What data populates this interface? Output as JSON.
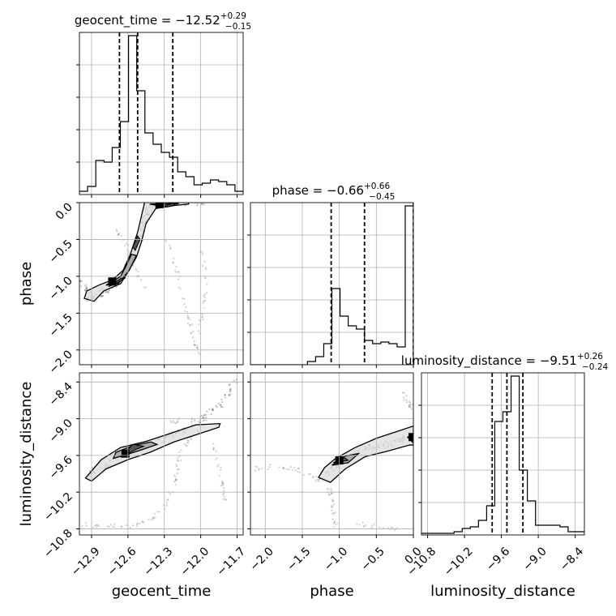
{
  "chart_data": {
    "type": "corner",
    "grid": true,
    "parameters": [
      {
        "name": "geocent_time",
        "title_prefix": "geocent_time = ",
        "median_text": "−12.52",
        "upper_err_text": "+0.29",
        "lower_err_text": "−0.15",
        "range": [
          -13.0,
          -11.65
        ],
        "quantiles": [
          -12.67,
          -12.52,
          -12.23
        ],
        "ticks": [
          -12.9,
          -12.6,
          -12.3,
          -12.0,
          -11.7
        ],
        "tick_labels": [
          "−12.9",
          "−12.6",
          "−12.3",
          "−12.0",
          "−11.7"
        ],
        "histogram": {
          "edges_start": -13.0,
          "bin_width": 0.0675,
          "counts": [
            0.02,
            0.05,
            0.21,
            0.2,
            0.29,
            0.45,
            0.98,
            0.64,
            0.38,
            0.31,
            0.26,
            0.23,
            0.14,
            0.11,
            0.06,
            0.07,
            0.09,
            0.08,
            0.06,
            0.02
          ]
        }
      },
      {
        "name": "phase",
        "title_prefix": "phase = ",
        "median_text": "−0.66",
        "upper_err_text": "+0.66",
        "lower_err_text": "−0.45",
        "range": [
          -2.2,
          0.0
        ],
        "quantiles": [
          -1.11,
          -0.66,
          0.0
        ],
        "ticks": [
          -2.0,
          -1.5,
          -1.0,
          -0.5,
          0.0
        ],
        "tick_labels": [
          "−2.0",
          "−1.5",
          "−1.0",
          "−0.5",
          "0.0"
        ],
        "histogram": {
          "edges_start": -2.2,
          "bin_width": 0.11,
          "counts": [
            0.0,
            0.0,
            0.0,
            0.0,
            0.0,
            0.0,
            0.0,
            0.02,
            0.05,
            0.13,
            0.47,
            0.3,
            0.24,
            0.22,
            0.15,
            0.13,
            0.14,
            0.13,
            0.11,
            0.98
          ]
        }
      },
      {
        "name": "luminosity_distance",
        "title_prefix": "luminosity_distance = ",
        "median_text": "−9.51",
        "upper_err_text": "+0.26",
        "lower_err_text": "−0.24",
        "range": [
          -10.9,
          -8.25
        ],
        "quantiles": [
          -9.75,
          -9.51,
          -9.25
        ],
        "ticks": [
          -10.8,
          -10.2,
          -9.6,
          -9.0,
          -8.4
        ],
        "tick_labels": [
          "−10.8",
          "−10.2",
          "−9.6",
          "−9.0",
          "−8.4"
        ],
        "histogram": {
          "edges_start": -10.9,
          "bin_width": 0.1325,
          "counts": [
            0.01,
            0.01,
            0.01,
            0.01,
            0.02,
            0.04,
            0.05,
            0.09,
            0.18,
            0.7,
            0.76,
            0.98,
            0.4,
            0.21,
            0.06,
            0.06,
            0.06,
            0.05,
            0.02,
            0.02
          ]
        }
      }
    ],
    "axis_labels": [
      "geocent_time",
      "phase",
      "luminosity_distance"
    ],
    "scatter_pairs": [
      {
        "x_param": "geocent_time",
        "y_param": "phase",
        "ridge": [
          [
            -12.93,
            -1.31
          ],
          [
            -12.85,
            -1.26
          ],
          [
            -12.76,
            -1.17
          ],
          [
            -12.7,
            -1.07
          ],
          [
            -12.63,
            -0.98
          ],
          [
            -12.58,
            -0.8
          ],
          [
            -12.55,
            -0.68
          ],
          [
            -12.5,
            -0.52
          ],
          [
            -12.48,
            -0.33
          ],
          [
            -12.44,
            -0.18
          ],
          [
            -12.42,
            -0.05
          ],
          [
            -12.3,
            -0.01
          ],
          [
            -12.15,
            0.0
          ],
          [
            -11.95,
            0.0
          ]
        ],
        "faint_trails": [
          [
            [
              -12.7,
              -0.35
            ],
            [
              -12.62,
              -0.55
            ],
            [
              -12.55,
              -0.9
            ],
            [
              -12.45,
              -1.2
            ]
          ],
          [
            [
              -12.28,
              -0.5
            ],
            [
              -12.2,
              -0.9
            ],
            [
              -12.15,
              -1.3
            ],
            [
              -12.1,
              -1.6
            ],
            [
              -12.05,
              -1.9
            ],
            [
              -12.0,
              -2.05
            ]
          ],
          [
            [
              -12.0,
              -0.6
            ],
            [
              -11.95,
              -1.1
            ],
            [
              -11.98,
              -1.5
            ],
            [
              -12.02,
              -1.8
            ]
          ],
          [
            [
              -13.0,
              -1.05
            ],
            [
              -12.95,
              -1.15
            ],
            [
              -12.9,
              -1.22
            ]
          ]
        ],
        "contours": [
          [
            [
              -12.96,
              -1.3
            ],
            [
              -12.88,
              -1.34
            ],
            [
              -12.8,
              -1.2
            ],
            [
              -12.66,
              -1.1
            ],
            [
              -12.6,
              -0.94
            ],
            [
              -12.53,
              -0.74
            ],
            [
              -12.49,
              -0.54
            ],
            [
              -12.45,
              -0.28
            ],
            [
              -12.37,
              -0.08
            ],
            [
              -12.22,
              -0.04
            ],
            [
              -12.1,
              -0.02
            ],
            [
              -12.1,
              0.02
            ],
            [
              -12.46,
              0.02
            ],
            [
              -12.52,
              -0.4
            ],
            [
              -12.58,
              -0.7
            ],
            [
              -12.64,
              -0.92
            ],
            [
              -12.73,
              -1.05
            ],
            [
              -12.84,
              -1.12
            ],
            [
              -12.94,
              -1.2
            ],
            [
              -12.96,
              -1.3
            ]
          ],
          [
            [
              -12.78,
              -1.12
            ],
            [
              -12.66,
              -1.0
            ],
            [
              -12.61,
              -0.84
            ],
            [
              -12.57,
              -0.7
            ],
            [
              -12.53,
              -0.72
            ],
            [
              -12.59,
              -0.92
            ],
            [
              -12.68,
              -1.1
            ],
            [
              -12.78,
              -1.12
            ]
          ],
          [
            [
              -12.42,
              -0.02
            ],
            [
              -12.28,
              -0.06
            ],
            [
              -12.18,
              -0.01
            ],
            [
              -12.42,
              -0.02
            ]
          ]
        ],
        "filled": [
          [
            [
              -12.76,
              -1.14
            ],
            [
              -12.66,
              -1.03
            ],
            [
              -12.62,
              -1.02
            ],
            [
              -12.7,
              -1.1
            ],
            [
              -12.76,
              -1.14
            ]
          ],
          [
            [
              -12.56,
              -0.6
            ],
            [
              -12.52,
              -0.45
            ],
            [
              -12.5,
              -0.5
            ],
            [
              -12.54,
              -0.65
            ],
            [
              -12.56,
              -0.6
            ]
          ],
          [
            [
              -12.4,
              -0.02
            ],
            [
              -12.3,
              -0.05
            ],
            [
              -12.24,
              -0.02
            ],
            [
              -12.4,
              -0.02
            ]
          ]
        ],
        "peaks": [
          [
            -12.73,
            -1.07
          ],
          [
            -12.34,
            -0.02
          ]
        ]
      },
      {
        "x_param": "geocent_time",
        "y_param": "luminosity_distance",
        "ridge": [
          [
            -12.95,
            -9.95
          ],
          [
            -12.86,
            -9.83
          ],
          [
            -12.75,
            -9.7
          ],
          [
            -12.62,
            -9.56
          ],
          [
            -12.5,
            -9.47
          ],
          [
            -12.35,
            -9.35
          ],
          [
            -12.2,
            -9.24
          ],
          [
            -12.05,
            -9.08
          ],
          [
            -11.9,
            -8.88
          ],
          [
            -11.8,
            -8.68
          ],
          [
            -11.72,
            -8.35
          ]
        ],
        "faint_trails": [
          [
            [
              -12.98,
              -10.72
            ],
            [
              -12.8,
              -10.75
            ],
            [
              -12.6,
              -10.77
            ],
            [
              -12.45,
              -10.7
            ],
            [
              -12.3,
              -10.45
            ],
            [
              -12.22,
              -10.1
            ],
            [
              -12.2,
              -9.85
            ],
            [
              -12.17,
              -9.6
            ],
            [
              -12.1,
              -9.35
            ],
            [
              -12.0,
              -9.18
            ]
          ],
          [
            [
              -12.25,
              -9.05
            ],
            [
              -12.1,
              -9.02
            ],
            [
              -11.95,
              -9.0
            ]
          ],
          [
            [
              -11.9,
              -9.4
            ],
            [
              -11.85,
              -9.8
            ],
            [
              -11.82,
              -10.1
            ],
            [
              -11.8,
              -10.4
            ]
          ]
        ],
        "contours": [
          [
            [
              -12.95,
              -9.97
            ],
            [
              -12.9,
              -10.02
            ],
            [
              -12.78,
              -9.82
            ],
            [
              -12.6,
              -9.67
            ],
            [
              -12.42,
              -9.55
            ],
            [
              -12.22,
              -9.38
            ],
            [
              -12.02,
              -9.25
            ],
            [
              -11.85,
              -9.14
            ],
            [
              -11.84,
              -9.08
            ],
            [
              -12.04,
              -9.1
            ],
            [
              -12.25,
              -9.24
            ],
            [
              -12.45,
              -9.37
            ],
            [
              -12.66,
              -9.47
            ],
            [
              -12.82,
              -9.67
            ],
            [
              -12.95,
              -9.97
            ]
          ],
          [
            [
              -12.72,
              -9.65
            ],
            [
              -12.52,
              -9.53
            ],
            [
              -12.36,
              -9.42
            ],
            [
              -12.41,
              -9.38
            ],
            [
              -12.56,
              -9.44
            ],
            [
              -12.7,
              -9.55
            ],
            [
              -12.72,
              -9.65
            ]
          ]
        ],
        "filled": [
          [
            [
              -12.66,
              -9.63
            ],
            [
              -12.53,
              -9.5
            ],
            [
              -12.47,
              -9.45
            ],
            [
              -12.56,
              -9.42
            ],
            [
              -12.66,
              -9.63
            ]
          ]
        ],
        "peaks": [
          [
            -12.62,
            -9.57
          ]
        ]
      },
      {
        "x_param": "phase",
        "y_param": "luminosity_distance",
        "ridge": [
          [
            -1.25,
            -9.98
          ],
          [
            -1.1,
            -9.8
          ],
          [
            -0.95,
            -9.68
          ],
          [
            -0.8,
            -9.57
          ],
          [
            -0.6,
            -9.46
          ],
          [
            -0.4,
            -9.43
          ],
          [
            -0.2,
            -9.37
          ],
          [
            -0.05,
            -9.28
          ],
          [
            0.0,
            -9.22
          ]
        ],
        "faint_trails": [
          [
            [
              -2.15,
              -9.82
            ],
            [
              -1.9,
              -9.78
            ],
            [
              -1.6,
              -9.82
            ],
            [
              -1.35,
              -9.95
            ],
            [
              -1.2,
              -10.05
            ]
          ],
          [
            [
              -1.15,
              -10.1
            ],
            [
              -1.1,
              -10.3
            ],
            [
              -1.08,
              -10.55
            ],
            [
              -1.05,
              -10.75
            ]
          ],
          [
            [
              -0.8,
              -10.72
            ],
            [
              -0.5,
              -10.75
            ],
            [
              -0.2,
              -10.8
            ]
          ],
          [
            [
              -0.15,
              -8.6
            ],
            [
              -0.05,
              -8.75
            ],
            [
              0.0,
              -8.85
            ]
          ]
        ],
        "contours": [
          [
            [
              -1.28,
              -9.96
            ],
            [
              -1.12,
              -10.04
            ],
            [
              -0.92,
              -9.82
            ],
            [
              -0.65,
              -9.62
            ],
            [
              -0.35,
              -9.53
            ],
            [
              -0.05,
              -9.43
            ],
            [
              0.0,
              -9.43
            ],
            [
              0.0,
              -9.12
            ],
            [
              -0.2,
              -9.2
            ],
            [
              -0.5,
              -9.32
            ],
            [
              -0.8,
              -9.48
            ],
            [
              -1.05,
              -9.65
            ],
            [
              -1.2,
              -9.8
            ],
            [
              -1.28,
              -9.96
            ]
          ],
          [
            [
              -1.1,
              -9.76
            ],
            [
              -0.92,
              -9.61
            ],
            [
              -0.74,
              -9.57
            ],
            [
              -0.88,
              -9.72
            ],
            [
              -1.1,
              -9.76
            ]
          ]
        ],
        "filled": [
          [
            [
              -1.08,
              -9.72
            ],
            [
              -0.95,
              -9.62
            ],
            [
              -0.88,
              -9.68
            ],
            [
              -1.08,
              -9.72
            ]
          ],
          [
            [
              -0.08,
              -9.3
            ],
            [
              0.0,
              -9.25
            ],
            [
              0.0,
              -9.4
            ],
            [
              -0.08,
              -9.3
            ]
          ]
        ],
        "peaks": [
          [
            -1.0,
            -9.68
          ],
          [
            -0.01,
            -9.3
          ]
        ]
      }
    ]
  }
}
